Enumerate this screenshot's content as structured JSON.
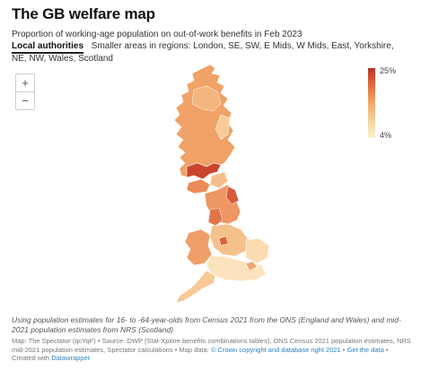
{
  "header": {
    "title": "The GB welfare map",
    "subtitle": "Proportion of working-age population on out-of-work benefits in Feb 2023"
  },
  "tabs": {
    "active_label": "Local authorities",
    "other_label": "Smaller areas in regions: London, SE, SW, E Mids, W Mids, East, Yorkshire, NE, NW, Wales, Scotland"
  },
  "zoom": {
    "zoom_in": "+",
    "zoom_out": "−"
  },
  "legend": {
    "max_label": "25%",
    "min_label": "4%",
    "color_max": "#b8332b",
    "color_min": "#fdf2cf"
  },
  "footer": {
    "note": "Using population estimates for 16- to -64-year-olds from Census 2021 from the ONS (England and Wales) and mid-2021 population estimates from NRS (Scotland)",
    "source_text": "Map: The Spectator (qcYqF) • Source: DWP (Stat-Xplore benefits combinations tables), ONS Census 2021 population estimates, NRS mid-2021 population estimates, Spectator calculations • Map data: ",
    "copyright_link": "© Crown copyright and database right 2021",
    "separator": " • ",
    "get_data_link": "Get the data",
    "created_with_text": " • Created with ",
    "datawrapper_link": "Datawrapper"
  }
}
